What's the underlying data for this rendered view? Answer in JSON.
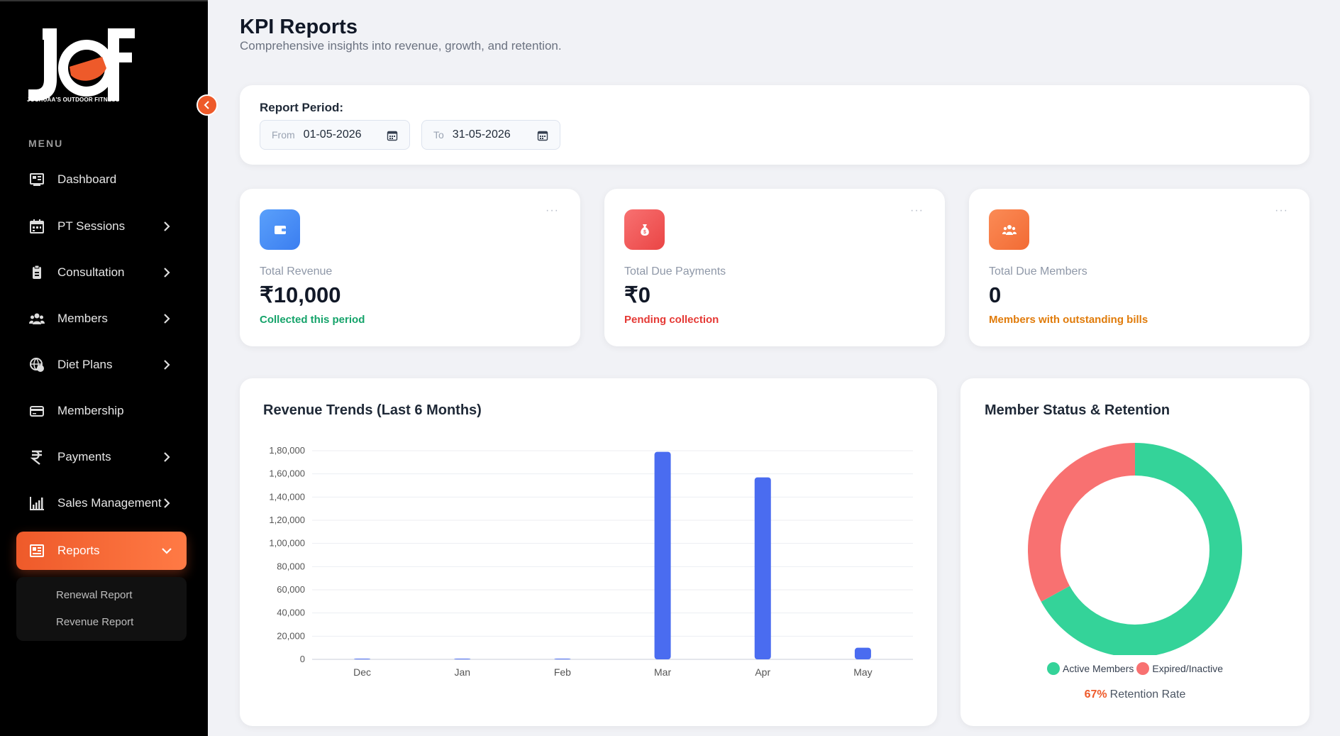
{
  "brand": {
    "logo_text": "JOSHUAA'S OUTDOOR FITNESS",
    "accent": "#ee5a2a"
  },
  "sidebar": {
    "menu_label": "MENU",
    "items": [
      {
        "label": "Dashboard",
        "icon": "dashboard-icon",
        "has_chevron": false
      },
      {
        "label": "PT Sessions",
        "icon": "calendar-icon",
        "has_chevron": true
      },
      {
        "label": "Consultation",
        "icon": "clipboard-icon",
        "has_chevron": true
      },
      {
        "label": "Members",
        "icon": "users-icon",
        "has_chevron": true
      },
      {
        "label": "Diet Plans",
        "icon": "globe-food-icon",
        "has_chevron": true
      },
      {
        "label": "Membership",
        "icon": "card-icon",
        "has_chevron": false
      },
      {
        "label": "Payments",
        "icon": "rupee-icon",
        "has_chevron": true
      },
      {
        "label": "Sales Management",
        "icon": "bar-chart-icon",
        "has_chevron": true
      },
      {
        "label": "Reports",
        "icon": "report-icon",
        "has_chevron": true,
        "active": true
      }
    ],
    "reports_submenu": [
      "Renewal Report",
      "Revenue Report"
    ]
  },
  "header": {
    "title": "KPI Reports",
    "subtitle": "Comprehensive insights into revenue, growth, and retention."
  },
  "period": {
    "label": "Report Period:",
    "from_prefix": "From",
    "from_value": "01-05-2026",
    "to_prefix": "To",
    "to_value": "31-05-2026"
  },
  "kpis": [
    {
      "label": "Total Revenue",
      "value": "₹10,000",
      "note": "Collected this period",
      "note_color": "#15a36a",
      "icon": "wallet-icon",
      "icon_color": "#4f8ff7"
    },
    {
      "label": "Total Due Payments",
      "value": "₹0",
      "note": "Pending collection",
      "note_color": "#e53935",
      "icon": "money-bag-icon",
      "icon_color": "#f05a5a"
    },
    {
      "label": "Total Due Members",
      "value": "0",
      "note": "Members with outstanding bills",
      "note_color": "#e07b0a",
      "icon": "users-icon",
      "icon_color": "#f7814a"
    }
  ],
  "kpi_menu": "···",
  "chart_data": [
    {
      "type": "bar",
      "title": "Revenue Trends (Last 6 Months)",
      "categories": [
        "Dec",
        "Jan",
        "Feb",
        "Mar",
        "Apr",
        "May"
      ],
      "values": [
        600,
        600,
        600,
        179000,
        157000,
        10000
      ],
      "ylim": [
        0,
        180000
      ],
      "yticks": [
        "0",
        "20,000",
        "40,000",
        "60,000",
        "80,000",
        "1,00,000",
        "1,20,000",
        "1,40,000",
        "1,60,000",
        "1,80,000"
      ],
      "ytick_values": [
        0,
        20000,
        40000,
        60000,
        80000,
        100000,
        120000,
        140000,
        160000,
        180000
      ],
      "color": "#4a6cf0",
      "grid": true
    },
    {
      "type": "pie",
      "title": "Member Status & Retention",
      "labels": [
        "Active Members",
        "Expired/Inactive"
      ],
      "values": [
        67,
        33
      ],
      "colors": [
        "#34d399",
        "#f87171"
      ],
      "legend": "bottom",
      "retention_pct": "67%",
      "retention_label": "Retention Rate"
    }
  ]
}
